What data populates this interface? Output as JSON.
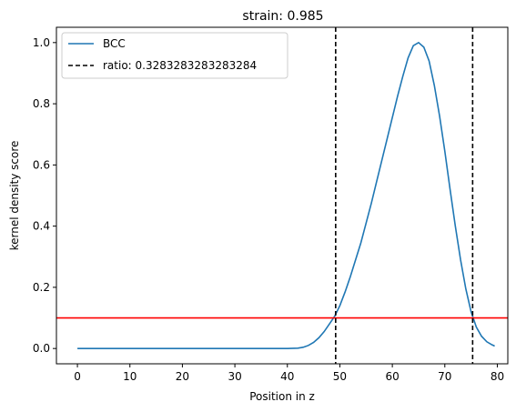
{
  "chart_data": {
    "type": "line",
    "title": "strain: 0.985",
    "xlabel": "Position in z",
    "ylabel": "kernel density score",
    "xlim": [
      -4,
      82
    ],
    "ylim": [
      -0.05,
      1.05
    ],
    "xticks": [
      0,
      10,
      20,
      30,
      40,
      50,
      60,
      70,
      80
    ],
    "yticks": [
      0.0,
      0.2,
      0.4,
      0.6,
      0.8,
      1.0
    ],
    "ytick_labels": [
      "0.0",
      "0.2",
      "0.4",
      "0.6",
      "0.8",
      "1.0"
    ],
    "grid": false,
    "legend_position": "top-left",
    "series": [
      {
        "name": "BCC",
        "color": "#1f77b4",
        "x": [
          0,
          5,
          10,
          15,
          20,
          25,
          30,
          35,
          40,
          42,
          43,
          44,
          45,
          46,
          47,
          48,
          49,
          50,
          51,
          52,
          53,
          54,
          55,
          56,
          57,
          58,
          59,
          60,
          61,
          62,
          63,
          64,
          65,
          66,
          67,
          68,
          69,
          70,
          71,
          72,
          73,
          74,
          75,
          76,
          77,
          78,
          79,
          79.5
        ],
        "y": [
          0,
          0,
          0,
          0,
          0,
          0,
          0,
          0,
          0,
          0.001,
          0.004,
          0.01,
          0.02,
          0.035,
          0.055,
          0.08,
          0.105,
          0.14,
          0.185,
          0.235,
          0.29,
          0.345,
          0.41,
          0.475,
          0.545,
          0.615,
          0.685,
          0.755,
          0.825,
          0.89,
          0.95,
          0.99,
          1.0,
          0.985,
          0.94,
          0.86,
          0.76,
          0.645,
          0.52,
          0.4,
          0.29,
          0.195,
          0.12,
          0.07,
          0.04,
          0.022,
          0.012,
          0.008
        ]
      }
    ],
    "vlines": {
      "name": "ratio: 0.3283283283283284",
      "color": "#000000",
      "style": "dashed",
      "x": [
        49.2,
        75.3
      ]
    },
    "hline": {
      "y": 0.1,
      "color": "#ff0000"
    }
  }
}
